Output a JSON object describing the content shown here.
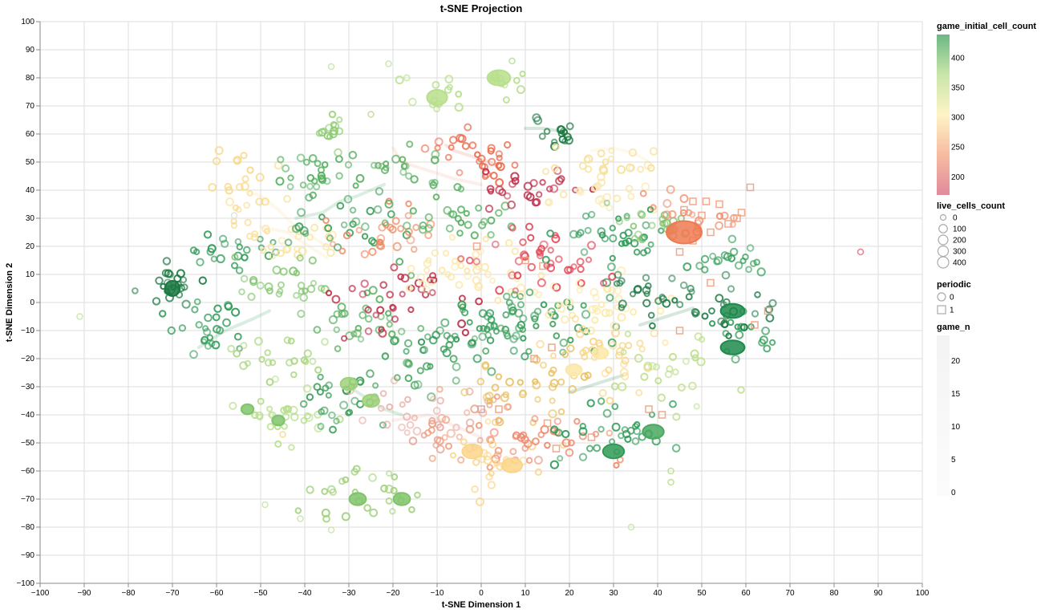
{
  "chart_data": {
    "type": "scatter",
    "title": "t-SNE Projection",
    "xlabel": "t-SNE Dimension 1",
    "ylabel": "t-SNE Dimension 2",
    "xlim": [
      -100,
      100
    ],
    "ylim": [
      -100,
      100
    ],
    "x_ticks": [
      -100,
      -90,
      -80,
      -70,
      -60,
      -50,
      -40,
      -30,
      -20,
      -10,
      0,
      10,
      20,
      30,
      40,
      50,
      60,
      70,
      80,
      90,
      100
    ],
    "y_ticks": [
      100,
      90,
      80,
      70,
      60,
      50,
      40,
      30,
      20,
      10,
      0,
      -10,
      -20,
      -30,
      -40,
      -50,
      -60,
      -70,
      -80,
      -90,
      -100
    ],
    "grid": true,
    "encodings": {
      "color": "game_initial_cell_count",
      "size": "live_cells_count",
      "shape": "periodic",
      "opacity": "game_n"
    },
    "legends": {
      "color": {
        "title": "game_initial_cell_count",
        "ticks": [
          400,
          350,
          300,
          250,
          200
        ],
        "domain": [
          170,
          440
        ],
        "stops": [
          "#d6637a",
          "#f4a582",
          "#fdf0b4",
          "#b8dd8c",
          "#3aa05d"
        ]
      },
      "size": {
        "title": "live_cells_count",
        "values": [
          0,
          100,
          200,
          300,
          400
        ]
      },
      "shape": {
        "title": "periodic",
        "items": [
          {
            "label": "0",
            "shape": "circle"
          },
          {
            "label": "1",
            "shape": "square"
          }
        ]
      },
      "opacity": {
        "title": "game_n",
        "ticks": [
          20,
          15,
          10,
          5,
          0
        ]
      }
    },
    "clusters": [
      {
        "x": -70,
        "y": 6,
        "n": 22,
        "dx": 3,
        "dy": 3,
        "c": "#1e7a45"
      },
      {
        "x": -62,
        "y": -10,
        "n": 26,
        "dx": 4,
        "dy": 5,
        "c": "#2f9a57"
      },
      {
        "x": -57,
        "y": 18,
        "n": 22,
        "dx": 5,
        "dy": 3,
        "c": "#2f9a57"
      },
      {
        "x": -52,
        "y": 40,
        "n": 26,
        "dx": 4,
        "dy": 6,
        "c": "#f9d98a"
      },
      {
        "x": -45,
        "y": 22,
        "n": 24,
        "dx": 5,
        "dy": 4,
        "c": "#f9e4a0"
      },
      {
        "x": -44,
        "y": 5,
        "n": 28,
        "dx": 5,
        "dy": 4,
        "c": "#7fc46a"
      },
      {
        "x": -40,
        "y": 45,
        "n": 24,
        "dx": 5,
        "dy": 4,
        "c": "#56b060"
      },
      {
        "x": -34,
        "y": 60,
        "n": 14,
        "dx": 2,
        "dy": 3,
        "c": "#8ccc6f"
      },
      {
        "x": -30,
        "y": 28,
        "n": 26,
        "dx": 7,
        "dy": 5,
        "c": "#3d9f5a"
      },
      {
        "x": -28,
        "y": -5,
        "n": 26,
        "dx": 7,
        "dy": 6,
        "c": "#5fb063"
      },
      {
        "x": -45,
        "y": -20,
        "n": 22,
        "dx": 6,
        "dy": 5,
        "c": "#a8d67e"
      },
      {
        "x": -45,
        "y": -40,
        "n": 28,
        "dx": 6,
        "dy": 5,
        "c": "#b8df8c"
      },
      {
        "x": -30,
        "y": -35,
        "n": 28,
        "dx": 6,
        "dy": 5,
        "c": "#3d9f5a"
      },
      {
        "x": -28,
        "y": -68,
        "n": 28,
        "dx": 7,
        "dy": 4,
        "c": "#9fd17a"
      },
      {
        "x": -20,
        "y": 48,
        "n": 20,
        "dx": 6,
        "dy": 4,
        "c": "#5fb063"
      },
      {
        "x": -22,
        "y": 25,
        "n": 28,
        "dx": 6,
        "dy": 5,
        "c": "#ef8a62"
      },
      {
        "x": -18,
        "y": 0,
        "n": 34,
        "dx": 8,
        "dy": 7,
        "c": "#c0304c"
      },
      {
        "x": -15,
        "y": -20,
        "n": 30,
        "dx": 7,
        "dy": 7,
        "c": "#4aa861"
      },
      {
        "x": -15,
        "y": -40,
        "n": 30,
        "dx": 7,
        "dy": 6,
        "c": "#e8a8a0"
      },
      {
        "x": -10,
        "y": 75,
        "n": 14,
        "dx": 6,
        "dy": 3,
        "c": "#b8df8c"
      },
      {
        "x": -3,
        "y": 52,
        "n": 30,
        "dx": 6,
        "dy": 4,
        "c": "#ea6b4c"
      },
      {
        "x": -5,
        "y": 30,
        "n": 34,
        "dx": 8,
        "dy": 6,
        "c": "#56b060"
      },
      {
        "x": -2,
        "y": 10,
        "n": 44,
        "dx": 8,
        "dy": 6,
        "c": "#fbe7a8"
      },
      {
        "x": 0,
        "y": -10,
        "n": 44,
        "dx": 8,
        "dy": 6,
        "c": "#2f9a57"
      },
      {
        "x": -2,
        "y": -45,
        "n": 34,
        "dx": 8,
        "dy": 6,
        "c": "#f0a080"
      },
      {
        "x": 5,
        "y": -58,
        "n": 24,
        "dx": 6,
        "dy": 6,
        "c": "#fbd68a"
      },
      {
        "x": 5,
        "y": 80,
        "n": 10,
        "dx": 3,
        "dy": 2,
        "c": "#b8df8c"
      },
      {
        "x": 12,
        "y": 40,
        "n": 26,
        "dx": 6,
        "dy": 4,
        "c": "#c0304c"
      },
      {
        "x": 12,
        "y": 15,
        "n": 40,
        "dx": 8,
        "dy": 6,
        "c": "#e34a59"
      },
      {
        "x": 15,
        "y": -5,
        "n": 40,
        "dx": 8,
        "dy": 6,
        "c": "#3d9f5a"
      },
      {
        "x": 12,
        "y": -30,
        "n": 36,
        "dx": 8,
        "dy": 6,
        "c": "#e8c060"
      },
      {
        "x": 14,
        "y": -50,
        "n": 30,
        "dx": 7,
        "dy": 5,
        "c": "#f08a70"
      },
      {
        "x": 18,
        "y": 60,
        "n": 16,
        "dx": 4,
        "dy": 3,
        "c": "#1a7840"
      },
      {
        "x": 30,
        "y": 50,
        "n": 22,
        "dx": 6,
        "dy": 3,
        "c": "#f7e09a"
      },
      {
        "x": 28,
        "y": 38,
        "n": 20,
        "dx": 6,
        "dy": 3,
        "c": "#fbe8b0"
      },
      {
        "x": 28,
        "y": 22,
        "n": 34,
        "dx": 7,
        "dy": 5,
        "c": "#2f9a57"
      },
      {
        "x": 28,
        "y": 0,
        "n": 36,
        "dx": 7,
        "dy": 6,
        "c": "#fde9a8"
      },
      {
        "x": 30,
        "y": -20,
        "n": 34,
        "dx": 7,
        "dy": 6,
        "c": "#f9d68a"
      },
      {
        "x": 30,
        "y": -45,
        "n": 34,
        "dx": 7,
        "dy": 6,
        "c": "#2f9a57"
      },
      {
        "x": 40,
        "y": 28,
        "n": 22,
        "dx": 5,
        "dy": 4,
        "c": "#7fc46a"
      },
      {
        "x": 40,
        "y": 5,
        "n": 30,
        "dx": 6,
        "dy": 5,
        "c": "#1e7a45"
      },
      {
        "x": 42,
        "y": -25,
        "n": 26,
        "dx": 6,
        "dy": 6,
        "c": "#bfe08e"
      },
      {
        "x": 48,
        "y": 30,
        "n": 22,
        "dx": 6,
        "dy": 5,
        "c": "#f09070"
      },
      {
        "x": 55,
        "y": 15,
        "n": 20,
        "dx": 5,
        "dy": 4,
        "c": "#3aa05d"
      },
      {
        "x": 58,
        "y": -2,
        "n": 22,
        "dx": 5,
        "dy": 5,
        "c": "#1e7a45"
      },
      {
        "x": 60,
        "y": -12,
        "n": 14,
        "dx": 4,
        "dy": 4,
        "c": "#2f9a57"
      }
    ],
    "paths": [
      {
        "xs": [
          -54,
          -50,
          -46,
          -42,
          -38,
          -35
        ],
        "ys": [
          40,
          38,
          33,
          27,
          23,
          20
        ],
        "c": "#fbd68a"
      },
      {
        "xs": [
          -50,
          -44,
          -39,
          -35
        ],
        "ys": [
          27,
          25,
          20,
          16
        ],
        "c": "#f9d98a"
      },
      {
        "xs": [
          -64,
          -58,
          -52,
          -48
        ],
        "ys": [
          -16,
          -10,
          -6,
          -3
        ],
        "c": "#2f9a57"
      },
      {
        "xs": [
          -42,
          -36,
          -32,
          -28,
          -22
        ],
        "ys": [
          30,
          32,
          36,
          38,
          42
        ],
        "c": "#3d9f5a"
      },
      {
        "xs": [
          -20,
          -18,
          -12,
          -6,
          0
        ],
        "ys": [
          55,
          50,
          47,
          44,
          42
        ],
        "c": "#f0a080"
      },
      {
        "xs": [
          -8,
          -6,
          -2,
          2,
          4
        ],
        "ys": [
          56,
          54,
          52,
          50,
          48
        ],
        "c": "#ea6b4c"
      },
      {
        "xs": [
          10,
          14,
          18,
          20
        ],
        "ys": [
          62,
          62,
          61,
          58
        ],
        "c": "#1a7840"
      },
      {
        "xs": [
          25,
          30,
          35,
          38
        ],
        "ys": [
          54,
          55,
          53,
          50
        ],
        "c": "#f7e09a"
      },
      {
        "xs": [
          -30,
          -26,
          -22,
          -18
        ],
        "ys": [
          -30,
          -34,
          -38,
          -40
        ],
        "c": "#3d9f5a"
      },
      {
        "xs": [
          -20,
          -12,
          -6,
          0
        ],
        "ys": [
          -42,
          -40,
          -44,
          -48
        ],
        "c": "#e8a8a0"
      },
      {
        "xs": [
          20,
          24,
          28,
          32
        ],
        "ys": [
          -32,
          -30,
          -28,
          -26
        ],
        "c": "#1e7a45"
      },
      {
        "xs": [
          36,
          40,
          44,
          48
        ],
        "ys": [
          -8,
          -6,
          -4,
          -2
        ],
        "c": "#1e7a45"
      }
    ],
    "blobs": [
      {
        "x": 46,
        "y": 25,
        "rx": 4,
        "ry": 4,
        "c": "#ef7a52"
      },
      {
        "x": 57,
        "y": -3,
        "rx": 2.7,
        "ry": 2.5,
        "c": "#1e8a4c"
      },
      {
        "x": 57,
        "y": -16,
        "rx": 2.7,
        "ry": 2.5,
        "c": "#1e8a4c"
      },
      {
        "x": 39,
        "y": -46,
        "rx": 2.4,
        "ry": 2.5,
        "c": "#4aa861"
      },
      {
        "x": 30,
        "y": -53,
        "rx": 2.4,
        "ry": 2.5,
        "c": "#2f9a57"
      },
      {
        "x": 4,
        "y": 80,
        "rx": 2.6,
        "ry": 2.7,
        "c": "#b8df8c"
      },
      {
        "x": -10,
        "y": 73,
        "rx": 2.3,
        "ry": 2.7,
        "c": "#b8df8c"
      },
      {
        "x": -2,
        "y": -53,
        "rx": 2.3,
        "ry": 2.5,
        "c": "#fbd68a"
      },
      {
        "x": 7,
        "y": -58,
        "rx": 2.3,
        "ry": 2.5,
        "c": "#fbd68a"
      },
      {
        "x": -30,
        "y": -29,
        "rx": 1.9,
        "ry": 2.2,
        "c": "#9fd17a"
      },
      {
        "x": -25,
        "y": -35,
        "rx": 1.9,
        "ry": 2.2,
        "c": "#9fd17a"
      },
      {
        "x": -28,
        "y": -70,
        "rx": 1.9,
        "ry": 2.2,
        "c": "#7fc46a"
      },
      {
        "x": -18,
        "y": -70,
        "rx": 1.9,
        "ry": 2.2,
        "c": "#7fc46a"
      },
      {
        "x": -53,
        "y": -38,
        "rx": 1.4,
        "ry": 1.8,
        "c": "#7fc46a"
      },
      {
        "x": -46,
        "y": -42,
        "rx": 1.4,
        "ry": 1.8,
        "c": "#7fc46a"
      },
      {
        "x": -70,
        "y": 5,
        "rx": 1.7,
        "ry": 2.7,
        "c": "#1a7840"
      },
      {
        "x": 21,
        "y": -24,
        "rx": 1.8,
        "ry": 2.0,
        "c": "#fbe7a8"
      },
      {
        "x": 27,
        "y": -18,
        "rx": 1.8,
        "ry": 2.0,
        "c": "#fbe7a8"
      }
    ],
    "squares": [
      {
        "x": 48,
        "y": 36,
        "c": "#f0a080"
      },
      {
        "x": 51,
        "y": 36,
        "c": "#f0a080"
      },
      {
        "x": 54,
        "y": 35,
        "c": "#f0a080"
      },
      {
        "x": 46,
        "y": 33,
        "c": "#f0a080"
      },
      {
        "x": 50,
        "y": 31,
        "c": "#f0a080"
      },
      {
        "x": 56,
        "y": 28,
        "c": "#f0a080"
      },
      {
        "x": 58,
        "y": 30,
        "c": "#f0a080"
      },
      {
        "x": 59,
        "y": 32,
        "c": "#f0a080"
      },
      {
        "x": 61,
        "y": 41,
        "c": "#f0a080"
      },
      {
        "x": 52,
        "y": 25,
        "c": "#f0a080"
      },
      {
        "x": 48,
        "y": 22,
        "c": "#f0a080"
      },
      {
        "x": 45,
        "y": 18,
        "c": "#f0a080"
      },
      {
        "x": 65,
        "y": -3,
        "c": "#f0a080"
      },
      {
        "x": 62,
        "y": -8,
        "c": "#f0a080"
      },
      {
        "x": 45,
        "y": -10,
        "c": "#f0a080"
      },
      {
        "x": 52,
        "y": 7,
        "c": "#f0a080"
      },
      {
        "x": 38,
        "y": -38,
        "c": "#f0a080"
      },
      {
        "x": 41,
        "y": -40,
        "c": "#f0a080"
      },
      {
        "x": 15,
        "y": -43,
        "c": "#f0a080"
      },
      {
        "x": 25,
        "y": -48,
        "c": "#f0a080"
      },
      {
        "x": 17,
        "y": -52,
        "c": "#f0a080"
      },
      {
        "x": 4,
        "y": -38,
        "c": "#f0a080"
      },
      {
        "x": 16,
        "y": -16,
        "c": "#f0a080"
      },
      {
        "x": 0,
        "y": -38,
        "c": "#d0a0a0"
      },
      {
        "x": 10,
        "y": 15,
        "c": "#f0a080"
      },
      {
        "x": 14,
        "y": 13,
        "c": "#f0a080"
      },
      {
        "x": -1,
        "y": 20,
        "c": "#f0a080"
      },
      {
        "x": 12,
        "y": -20,
        "c": "#f0a080"
      }
    ],
    "outliers": [
      {
        "x": -91,
        "y": -5,
        "c": "#c8e6a8"
      },
      {
        "x": 86,
        "y": 18,
        "c": "#e87080"
      },
      {
        "x": -34,
        "y": 84,
        "c": "#c8e6a8"
      },
      {
        "x": -21,
        "y": 85,
        "c": "#c8e6a8"
      },
      {
        "x": 7,
        "y": 86,
        "c": "#b8df8c"
      },
      {
        "x": -25,
        "y": 67,
        "c": "#b8df8c"
      },
      {
        "x": -49,
        "y": -72,
        "c": "#c8e6a8"
      },
      {
        "x": -34,
        "y": -81,
        "c": "#c8e6a8"
      },
      {
        "x": -41,
        "y": -77,
        "c": "#c8e6a8"
      },
      {
        "x": 34,
        "y": -80,
        "c": "#c8e6a8"
      },
      {
        "x": 43,
        "y": -64,
        "c": "#b8df8c"
      },
      {
        "x": 43,
        "y": -60,
        "c": "#b8df8c"
      },
      {
        "x": -56,
        "y": 31,
        "c": "#e0e0e0"
      },
      {
        "x": -45,
        "y": -47,
        "c": "#fbd68a"
      }
    ]
  }
}
